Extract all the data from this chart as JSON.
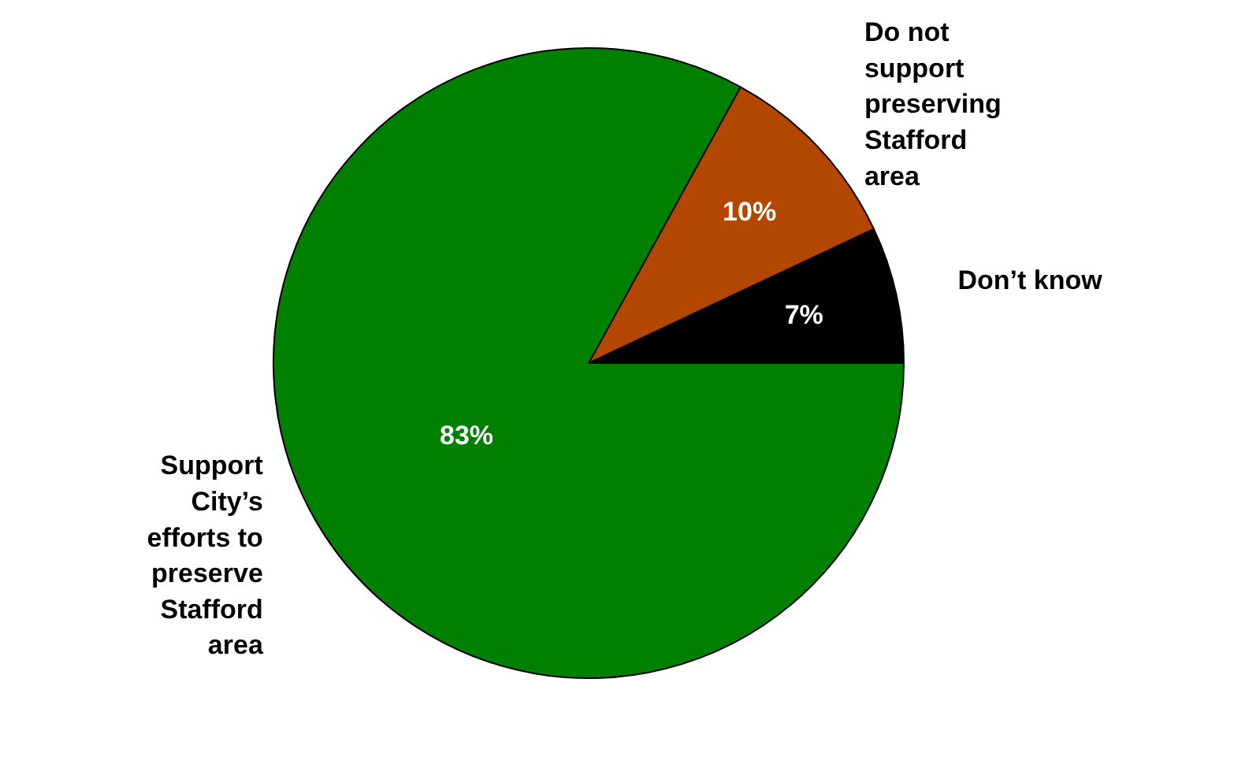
{
  "chart_data": {
    "type": "pie",
    "categories": [
      "Don’t know",
      "Do not\nsupport\npreserving\nStafford\narea",
      "Support\nCity’s\nefforts to\npreserve\nStafford\narea"
    ],
    "values": [
      7,
      10,
      83
    ],
    "colors": [
      "#000000",
      "#b34700",
      "#008000"
    ],
    "value_labels": [
      "7%",
      "10%",
      "83%"
    ]
  }
}
